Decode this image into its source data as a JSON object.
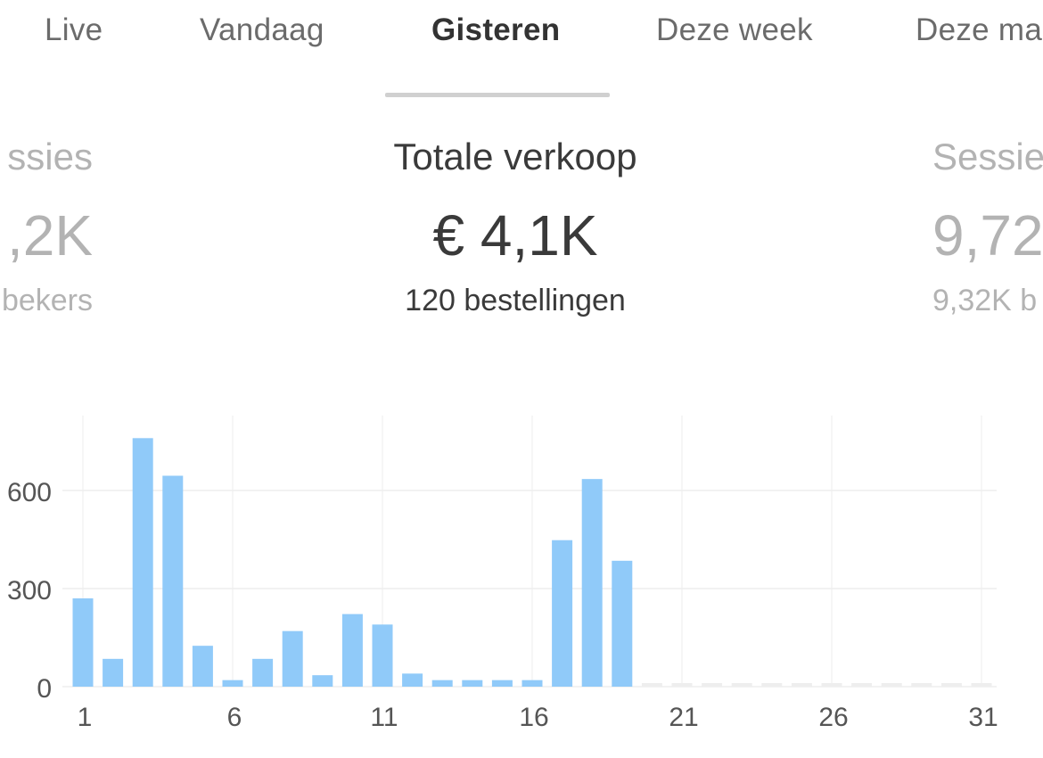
{
  "tabs": [
    {
      "label": "Live",
      "active": false
    },
    {
      "label": "Vandaag",
      "active": false
    },
    {
      "label": "Gisteren",
      "active": true
    },
    {
      "label": "Deze week",
      "active": false
    },
    {
      "label": "Deze ma",
      "active": false
    }
  ],
  "cards": {
    "left": {
      "label": "ssies",
      "value": ",2K",
      "sub": "bekers"
    },
    "main": {
      "label": "Totale verkoop",
      "value": "€ 4,1K",
      "sub": "120 bestellingen"
    },
    "right": {
      "label": "Sessie",
      "value": "9,72",
      "sub": "9,32K b"
    }
  },
  "colors": {
    "bar": "#90caf9",
    "bar_empty": "#eeeeee",
    "grid": "#eeeeee",
    "active_text": "#333333",
    "inactive_text": "#6b6b6b",
    "faded_text": "#b3b3b3"
  },
  "chart_data": {
    "type": "bar",
    "x": [
      1,
      2,
      3,
      4,
      5,
      6,
      7,
      8,
      9,
      10,
      11,
      12,
      13,
      14,
      15,
      16,
      17,
      18,
      19,
      20,
      21,
      22,
      23,
      24,
      25,
      26,
      27,
      28,
      29,
      30,
      31
    ],
    "values": [
      270,
      85,
      760,
      645,
      125,
      20,
      85,
      170,
      35,
      222,
      190,
      40,
      20,
      20,
      20,
      20,
      448,
      635,
      385,
      0,
      0,
      0,
      0,
      0,
      0,
      0,
      0,
      0,
      0,
      0,
      0
    ],
    "x_ticks": [
      "1",
      "6",
      "11",
      "16",
      "21",
      "26",
      "31"
    ],
    "y_ticks": [
      "0",
      "300",
      "600"
    ],
    "ylim": [
      0,
      900
    ],
    "grid": true
  }
}
